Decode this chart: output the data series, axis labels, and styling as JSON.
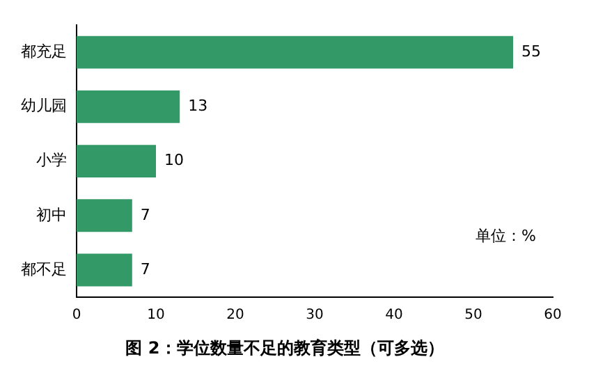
{
  "chart_data": {
    "type": "bar",
    "orientation": "horizontal",
    "title": "图 2：学位数量不足的教育类型（可多选）",
    "categories": [
      "都充足",
      "幼儿园",
      "小学",
      "初中",
      "都不足"
    ],
    "values": [
      55,
      13,
      10,
      7,
      7
    ],
    "color": "#339966",
    "xlim": [
      0,
      60
    ],
    "xticks": [
      0,
      10,
      20,
      30,
      40,
      50,
      60
    ],
    "grid": false,
    "data_labels": true,
    "annotations": [
      "单位：%"
    ]
  }
}
